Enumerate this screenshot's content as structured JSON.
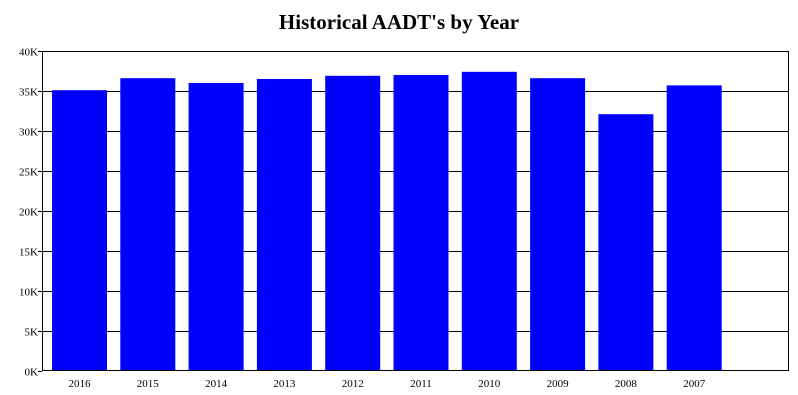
{
  "colors": {
    "bar": "#0000ff",
    "grid": "#000000",
    "background": "#ffffff"
  },
  "chart_data": {
    "type": "bar",
    "title": "Historical AADT's by Year",
    "xlabel": "",
    "ylabel": "",
    "categories": [
      "2016",
      "2015",
      "2014",
      "2013",
      "2012",
      "2011",
      "2010",
      "2009",
      "2008",
      "2007"
    ],
    "values": [
      35100,
      36600,
      36000,
      36500,
      36900,
      37000,
      37400,
      36600,
      32100,
      35700
    ],
    "ylim": [
      0,
      40000
    ],
    "yticks": [
      {
        "value": 0,
        "label": "0K"
      },
      {
        "value": 5000,
        "label": "5K"
      },
      {
        "value": 10000,
        "label": "10K"
      },
      {
        "value": 15000,
        "label": "15K"
      },
      {
        "value": 20000,
        "label": "20K"
      },
      {
        "value": 25000,
        "label": "25K"
      },
      {
        "value": 30000,
        "label": "30K"
      },
      {
        "value": 35000,
        "label": "35K"
      },
      {
        "value": 40000,
        "label": "40K"
      }
    ],
    "grid": true,
    "legend": "none"
  }
}
